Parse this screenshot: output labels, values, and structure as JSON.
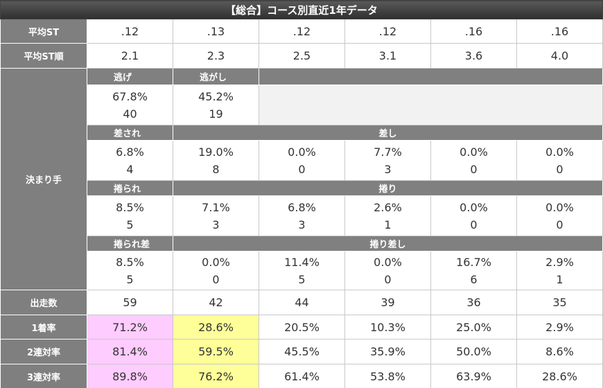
{
  "title": "【総合】コース別直近1年データ",
  "stats": [
    {
      "label": "平均ST",
      "values": [
        ".12",
        ".13",
        ".12",
        ".12",
        ".16",
        ".16"
      ]
    },
    {
      "label": "平均ST順",
      "values": [
        "2.1",
        "2.3",
        "2.5",
        "3.1",
        "3.6",
        "4.0"
      ]
    }
  ],
  "kimarite": {
    "label": "決まり手",
    "groups": [
      {
        "headers": [
          "逃げ",
          "逃がし"
        ],
        "rates": [
          "67.8%",
          "45.2%"
        ],
        "counts": [
          "40",
          "19"
        ]
      },
      {
        "headers": [
          "差され",
          "差し"
        ],
        "rates": [
          "6.8%",
          "19.0%",
          "0.0%",
          "7.7%",
          "0.0%",
          "0.0%"
        ],
        "counts": [
          "4",
          "8",
          "0",
          "3",
          "0",
          "0"
        ]
      },
      {
        "headers": [
          "捲られ",
          "捲り"
        ],
        "rates": [
          "8.5%",
          "7.1%",
          "6.8%",
          "2.6%",
          "0.0%",
          "0.0%"
        ],
        "counts": [
          "5",
          "3",
          "3",
          "1",
          "0",
          "0"
        ]
      },
      {
        "headers": [
          "捲られ差",
          "捲り差し"
        ],
        "rates": [
          "8.5%",
          "0.0%",
          "11.4%",
          "0.0%",
          "16.7%",
          "2.9%"
        ],
        "counts": [
          "5",
          "0",
          "5",
          "0",
          "6",
          "1"
        ]
      }
    ]
  },
  "results": [
    {
      "label": "出走数",
      "values": [
        "59",
        "42",
        "44",
        "39",
        "36",
        "35"
      ]
    },
    {
      "label": "1着率",
      "values": [
        "71.2%",
        "28.6%",
        "20.5%",
        "10.3%",
        "25.0%",
        "2.9%"
      ]
    },
    {
      "label": "2連対率",
      "values": [
        "81.4%",
        "59.5%",
        "45.5%",
        "35.9%",
        "50.0%",
        "8.6%"
      ]
    },
    {
      "label": "3連対率",
      "values": [
        "89.8%",
        "76.2%",
        "61.4%",
        "53.8%",
        "63.9%",
        "28.6%"
      ]
    }
  ]
}
